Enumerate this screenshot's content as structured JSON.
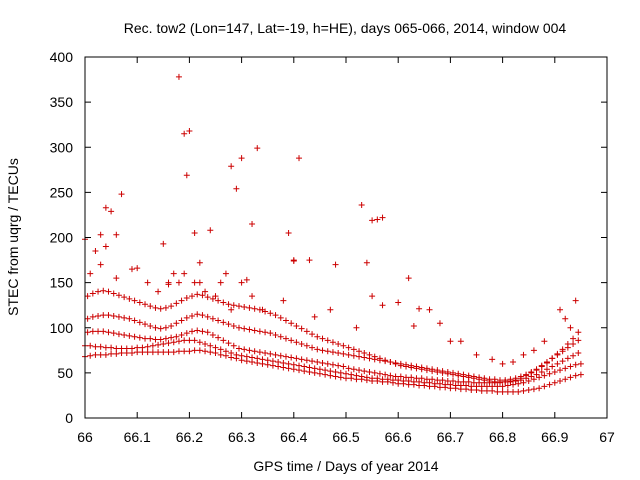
{
  "chart_data": {
    "type": "scatter",
    "title": "Rec. tow2 (Lon=147, Lat=-19, h=HE), days 065-066, 2014, window 004",
    "xlabel": "GPS time / Days of year 2014",
    "ylabel": "STEC from uqrg / TECUs",
    "xlim": [
      66,
      67
    ],
    "ylim": [
      0,
      400
    ],
    "xticks": [
      "66",
      "66.1",
      "66.2",
      "66.3",
      "66.4",
      "66.5",
      "66.6",
      "66.7",
      "66.8",
      "66.9",
      "67"
    ],
    "yticks": [
      "0",
      "50",
      "100",
      "150",
      "200",
      "250",
      "300",
      "350",
      "400"
    ],
    "grid": false,
    "marker": "+",
    "color": "#cc0000",
    "x": [
      66.0,
      66.01,
      66.02,
      66.03,
      66.04,
      66.05,
      66.06,
      66.07,
      66.08,
      66.09,
      66.1,
      66.11,
      66.12,
      66.13,
      66.14,
      66.15,
      66.16,
      66.17,
      66.18,
      66.19,
      66.2,
      66.21,
      66.22,
      66.23,
      66.24,
      66.25,
      66.26,
      66.27,
      66.28,
      66.29,
      66.3,
      66.31,
      66.32,
      66.33,
      66.34,
      66.35,
      66.36,
      66.37,
      66.38,
      66.39,
      66.4,
      66.41,
      66.42,
      66.43,
      66.44,
      66.45,
      66.46,
      66.47,
      66.48,
      66.49,
      66.5,
      66.51,
      66.52,
      66.53,
      66.54,
      66.55,
      66.56,
      66.57,
      66.58,
      66.59,
      66.6,
      66.61,
      66.62,
      66.63,
      66.64,
      66.65,
      66.66,
      66.67,
      66.68,
      66.69,
      66.7,
      66.71,
      66.72,
      66.73,
      66.74,
      66.75,
      66.76,
      66.77,
      66.78,
      66.79,
      66.8,
      66.81,
      66.82,
      66.83,
      66.84,
      66.85,
      66.86,
      66.87,
      66.88,
      66.89,
      66.9,
      66.91,
      66.92,
      66.93,
      66.94,
      66.95,
      66.0,
      66.01,
      66.02,
      66.03,
      66.04,
      66.05,
      66.06,
      66.07,
      66.08,
      66.09,
      66.1,
      66.11,
      66.12,
      66.13,
      66.14,
      66.15,
      66.16,
      66.17,
      66.18,
      66.19,
      66.2,
      66.21,
      66.22,
      66.23,
      66.24,
      66.25,
      66.26,
      66.27,
      66.28,
      66.29,
      66.3,
      66.31,
      66.32,
      66.33,
      66.34,
      66.35,
      66.36,
      66.37,
      66.38,
      66.39,
      66.4,
      66.41,
      66.42,
      66.43,
      66.44,
      66.45,
      66.46,
      66.47,
      66.48,
      66.49,
      66.5,
      66.51,
      66.52,
      66.53,
      66.54,
      66.55,
      66.56,
      66.57,
      66.58,
      66.59,
      66.6,
      66.61,
      66.62,
      66.63,
      66.64,
      66.65,
      66.66,
      66.67,
      66.68,
      66.69,
      66.7,
      66.71,
      66.72,
      66.73,
      66.74,
      66.75,
      66.76,
      66.77,
      66.78,
      66.79,
      66.8,
      66.81,
      66.82,
      66.83,
      66.84,
      66.85,
      66.86,
      66.87,
      66.88,
      66.89,
      66.9,
      66.91,
      66.92,
      66.93,
      66.94,
      66.95,
      66.005,
      66.015,
      66.025,
      66.035,
      66.045,
      66.055,
      66.065,
      66.075,
      66.085,
      66.095,
      66.105,
      66.115,
      66.125,
      66.135,
      66.145,
      66.155,
      66.165,
      66.175,
      66.185,
      66.195,
      66.205,
      66.215,
      66.225,
      66.235,
      66.245,
      66.255,
      66.265,
      66.275,
      66.285,
      66.295,
      66.305,
      66.315,
      66.325,
      66.335,
      66.345,
      66.355,
      66.365,
      66.375,
      66.385,
      66.395,
      66.405,
      66.415,
      66.425,
      66.435,
      66.445,
      66.455,
      66.465,
      66.475,
      66.485,
      66.495,
      66.505,
      66.515,
      66.525,
      66.535,
      66.545,
      66.555,
      66.565,
      66.575,
      66.585,
      66.595,
      66.605,
      66.615,
      66.625,
      66.635,
      66.645,
      66.655,
      66.665,
      66.675,
      66.685,
      66.695,
      66.705,
      66.715,
      66.725,
      66.735,
      66.745,
      66.755,
      66.765,
      66.775,
      66.785,
      66.795,
      66.805,
      66.815,
      66.825,
      66.835,
      66.845,
      66.855,
      66.865,
      66.875,
      66.885,
      66.895,
      66.905,
      66.915,
      66.925,
      66.935,
      66.945,
      66.005,
      66.015,
      66.025,
      66.035,
      66.045,
      66.055,
      66.065,
      66.075,
      66.085,
      66.095,
      66.105,
      66.115,
      66.125,
      66.135,
      66.145,
      66.155,
      66.165,
      66.175,
      66.185,
      66.195,
      66.205,
      66.215,
      66.225,
      66.235,
      66.245,
      66.255,
      66.265,
      66.275,
      66.285,
      66.295,
      66.305,
      66.315,
      66.325,
      66.335,
      66.345,
      66.355,
      66.365,
      66.375,
      66.385,
      66.395,
      66.405,
      66.415,
      66.425,
      66.435,
      66.445,
      66.455,
      66.465,
      66.475,
      66.485,
      66.495,
      66.505,
      66.515,
      66.525,
      66.535,
      66.545,
      66.555,
      66.565,
      66.575,
      66.585,
      66.595,
      66.605,
      66.615,
      66.625,
      66.635,
      66.645,
      66.655,
      66.665,
      66.675,
      66.685,
      66.695,
      66.705,
      66.715,
      66.725,
      66.735,
      66.745,
      66.755,
      66.765,
      66.775,
      66.785,
      66.795,
      66.805,
      66.815,
      66.825,
      66.835,
      66.845,
      66.855,
      66.865,
      66.875,
      66.885,
      66.895,
      66.905,
      66.915,
      66.925,
      66.935,
      66.945,
      66.005,
      66.015,
      66.025,
      66.035,
      66.045,
      66.055,
      66.065,
      66.075,
      66.085,
      66.095,
      66.105,
      66.115,
      66.125,
      66.135,
      66.145,
      66.155,
      66.165,
      66.175,
      66.185,
      66.195,
      66.205,
      66.215,
      66.225,
      66.235,
      66.245,
      66.255,
      66.265,
      66.275,
      66.285,
      66.295,
      66.305,
      66.315,
      66.325,
      66.335,
      66.345,
      66.355,
      66.365,
      66.375,
      66.385,
      66.395,
      66.405,
      66.415,
      66.425,
      66.435,
      66.445,
      66.455,
      66.465,
      66.475,
      66.485,
      66.495,
      66.505,
      66.515,
      66.525,
      66.535,
      66.545,
      66.555,
      66.565,
      66.575,
      66.585,
      66.595,
      66.605,
      66.615,
      66.625,
      66.635,
      66.645,
      66.655,
      66.665,
      66.675,
      66.685,
      66.695,
      66.705,
      66.715,
      66.725,
      66.735,
      66.745,
      66.755,
      66.765,
      66.775,
      66.785,
      66.795,
      66.805,
      66.815,
      66.825,
      66.835,
      66.845,
      66.855,
      66.865,
      66.875,
      66.885,
      66.895,
      66.905,
      66.915,
      66.925,
      66.935,
      66.945,
      66.0,
      66.03,
      66.04,
      66.05,
      66.06,
      66.07,
      66.1,
      66.15,
      66.16,
      66.18,
      66.19,
      66.195,
      66.2,
      66.21,
      66.22,
      66.24,
      66.27,
      66.28,
      66.29,
      66.3,
      66.31,
      66.32,
      66.33,
      66.39,
      66.4,
      66.41,
      66.43,
      66.48,
      66.53,
      66.54,
      66.55,
      66.56,
      66.57,
      66.62,
      66.64,
      66.01,
      66.02,
      66.03,
      66.04,
      66.06,
      66.09,
      66.12,
      66.14,
      66.16,
      66.17,
      66.18,
      66.19,
      66.21,
      66.22,
      66.23,
      66.25,
      66.26,
      66.28,
      66.3,
      66.32,
      66.34,
      66.38,
      66.4,
      66.44,
      66.47,
      66.52,
      66.55,
      66.57,
      66.6,
      66.63,
      66.66,
      66.68,
      66.7,
      66.72,
      66.75,
      66.78,
      66.8,
      66.82,
      66.84,
      66.86,
      66.88,
      66.91,
      66.92,
      66.93,
      66.94
    ],
    "y": [
      68,
      69,
      70,
      70,
      70,
      71,
      71,
      72,
      72,
      72,
      73,
      73,
      73,
      73,
      73,
      73,
      73,
      73,
      74,
      74,
      74,
      75,
      75,
      74,
      73,
      72,
      70,
      69,
      67,
      66,
      64,
      63,
      62,
      61,
      60,
      59,
      58,
      57,
      56,
      55,
      54,
      53,
      52,
      51,
      50,
      49,
      48,
      47,
      46,
      45,
      44,
      44,
      43,
      43,
      42,
      41,
      41,
      40,
      40,
      39,
      38,
      38,
      37,
      37,
      36,
      36,
      35,
      35,
      34,
      34,
      33,
      33,
      32,
      32,
      31,
      31,
      30,
      30,
      30,
      29,
      29,
      29,
      29,
      29,
      30,
      31,
      32,
      33,
      35,
      37,
      39,
      41,
      43,
      45,
      47,
      48,
      80,
      80,
      79,
      79,
      78,
      78,
      77,
      77,
      77,
      77,
      78,
      78,
      79,
      80,
      81,
      82,
      83,
      84,
      85,
      86,
      86,
      86,
      84,
      82,
      80,
      78,
      76,
      74,
      72,
      70,
      69,
      68,
      67,
      66,
      65,
      64,
      63,
      62,
      61,
      60,
      59,
      58,
      57,
      56,
      55,
      54,
      53,
      52,
      51,
      50,
      49,
      48,
      47,
      46,
      45,
      44,
      44,
      43,
      43,
      42,
      42,
      41,
      41,
      40,
      40,
      39,
      39,
      38,
      38,
      37,
      37,
      36,
      36,
      36,
      35,
      35,
      35,
      35,
      35,
      35,
      35,
      36,
      37,
      38,
      39,
      41,
      43,
      45,
      47,
      49,
      51,
      53,
      55,
      57,
      59,
      60,
      95,
      96,
      96,
      96,
      95,
      94,
      93,
      92,
      91,
      90,
      89,
      88,
      88,
      87,
      87,
      88,
      89,
      90,
      92,
      94,
      96,
      97,
      96,
      95,
      92,
      89,
      86,
      83,
      80,
      77,
      76,
      75,
      74,
      73,
      72,
      71,
      70,
      69,
      68,
      67,
      66,
      65,
      64,
      63,
      62,
      61,
      60,
      59,
      58,
      57,
      55,
      54,
      53,
      52,
      51,
      50,
      49,
      48,
      47,
      46,
      46,
      45,
      45,
      44,
      44,
      43,
      43,
      42,
      42,
      41,
      41,
      40,
      40,
      40,
      39,
      39,
      39,
      39,
      39,
      39,
      40,
      40,
      41,
      42,
      44,
      46,
      48,
      51,
      54,
      57,
      60,
      63,
      66,
      69,
      72,
      110,
      112,
      113,
      114,
      114,
      113,
      112,
      111,
      110,
      108,
      106,
      104,
      102,
      100,
      99,
      100,
      102,
      105,
      108,
      111,
      113,
      115,
      114,
      112,
      110,
      108,
      106,
      104,
      102,
      100,
      99,
      98,
      97,
      96,
      95,
      94,
      92,
      90,
      88,
      86,
      84,
      82,
      80,
      78,
      76,
      75,
      74,
      73,
      72,
      71,
      70,
      69,
      68,
      67,
      66,
      65,
      64,
      63,
      62,
      61,
      60,
      59,
      58,
      57,
      56,
      55,
      54,
      53,
      52,
      51,
      50,
      49,
      48,
      47,
      46,
      45,
      44,
      43,
      43,
      42,
      42,
      43,
      44,
      46,
      48,
      51,
      54,
      58,
      62,
      66,
      70,
      74,
      78,
      82,
      86,
      135,
      138,
      140,
      141,
      140,
      138,
      136,
      134,
      132,
      130,
      128,
      126,
      124,
      122,
      121,
      122,
      124,
      127,
      130,
      133,
      135,
      137,
      136,
      134,
      132,
      130,
      128,
      126,
      125,
      124,
      123,
      122,
      121,
      120,
      118,
      116,
      114,
      111,
      108,
      105,
      102,
      99,
      96,
      93,
      90,
      88,
      86,
      84,
      82,
      80,
      78,
      76,
      74,
      72,
      70,
      68,
      66,
      64,
      62,
      60,
      58,
      57,
      56,
      55,
      54,
      53,
      52,
      51,
      50,
      49,
      48,
      47,
      46,
      45,
      44,
      43,
      42,
      41,
      40,
      40,
      40,
      41,
      42,
      44,
      47,
      50,
      53,
      57,
      61,
      66,
      71,
      76,
      82,
      88,
      95,
      198,
      203,
      233,
      229,
      203,
      248,
      166,
      193,
      148,
      378,
      315,
      269,
      318,
      205,
      172,
      208,
      160,
      279,
      254,
      288,
      153,
      215,
      299,
      205,
      174,
      288,
      175,
      170,
      236,
      172,
      219,
      220,
      222,
      155,
      121,
      160,
      185,
      170,
      190,
      155,
      165,
      150,
      140,
      150,
      160,
      150,
      160,
      150,
      150,
      140,
      135,
      150,
      120,
      150,
      135,
      120,
      130,
      175,
      112,
      120,
      100,
      135,
      125,
      128,
      102,
      120,
      105,
      85,
      85,
      70,
      65,
      60,
      62,
      70,
      75,
      85,
      120,
      110,
      100,
      130
    ]
  }
}
